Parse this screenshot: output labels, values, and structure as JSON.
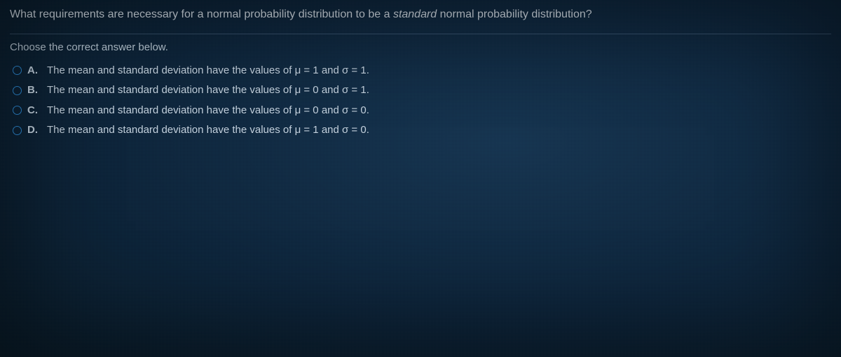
{
  "colors": {
    "background_base": "#0a2238",
    "background_highlight": "#13324e",
    "text_primary": "rgba(220,230,240,0.92)",
    "text_body": "rgba(210,225,238,0.92)",
    "radio_border": "#2e8bd6",
    "divider": "rgba(120,150,180,0.35)"
  },
  "typography": {
    "family": "Arial, Helvetica, sans-serif",
    "question_fontsize_pt": 12,
    "option_fontsize_pt": 11
  },
  "question": {
    "prefix": "What requirements are necessary for a normal probability distribution to be a ",
    "italic_word": "standard",
    "suffix": " normal probability distribution?"
  },
  "instruction": "Choose the correct answer below.",
  "options": [
    {
      "letter": "A.",
      "text": "The mean and standard deviation have the values of μ = 1 and σ = 1."
    },
    {
      "letter": "B.",
      "text": "The mean and standard deviation have the values of μ = 0 and σ = 1."
    },
    {
      "letter": "C.",
      "text": "The mean and standard deviation have the values of μ = 0 and σ = 0."
    },
    {
      "letter": "D.",
      "text": "The mean and standard deviation have the values of μ = 1 and σ = 0."
    }
  ],
  "selected_index": null
}
